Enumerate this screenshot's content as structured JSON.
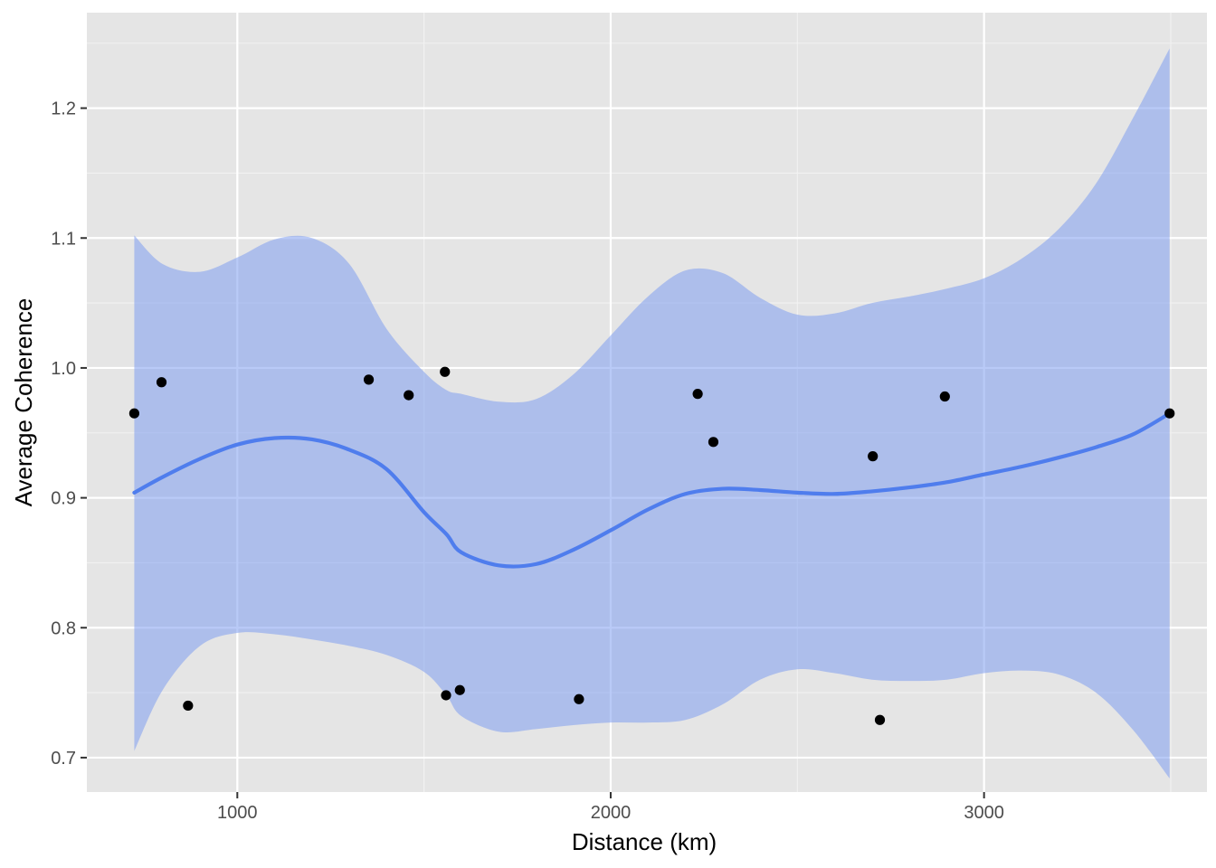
{
  "chart_data": {
    "type": "scatter",
    "title": "",
    "xlabel": "Distance (km)",
    "ylabel": "Average Coherence",
    "xlim": [
      597,
      3597
    ],
    "ylim": [
      0.6735,
      1.2735
    ],
    "x_ticks": [
      1000,
      2000,
      3000
    ],
    "x_tick_labels": [
      "1000",
      "2000",
      "3000"
    ],
    "x_minor_ticks": [
      1500,
      2500,
      3500
    ],
    "y_ticks": [
      0.7,
      0.8,
      0.9,
      1.0,
      1.1,
      1.2
    ],
    "y_tick_labels": [
      "0.7",
      "0.8",
      "0.9",
      "1.0",
      "1.1",
      "1.2"
    ],
    "y_minor_ticks": [
      0.75,
      0.85,
      0.95,
      1.05,
      1.15,
      1.25
    ],
    "grid": true,
    "legend": "none",
    "points": {
      "x": [
        724,
        797,
        868,
        1352,
        1459,
        1556,
        1559,
        1596,
        1915,
        2233,
        2275,
        2702,
        2721,
        2895,
        3497
      ],
      "y": [
        0.965,
        0.989,
        0.74,
        0.991,
        0.979,
        0.997,
        0.748,
        0.752,
        0.745,
        0.98,
        0.943,
        0.932,
        0.729,
        0.978,
        0.965
      ]
    },
    "smooth": {
      "x": [
        724,
        800,
        900,
        1000,
        1100,
        1200,
        1300,
        1400,
        1500,
        1560,
        1600,
        1700,
        1800,
        1900,
        2000,
        2100,
        2200,
        2300,
        2400,
        2500,
        2600,
        2700,
        2800,
        2900,
        3000,
        3100,
        3200,
        3300,
        3400,
        3497
      ],
      "y": [
        0.904,
        0.916,
        0.93,
        0.941,
        0.946,
        0.945,
        0.937,
        0.922,
        0.889,
        0.872,
        0.858,
        0.848,
        0.849,
        0.86,
        0.875,
        0.891,
        0.903,
        0.907,
        0.906,
        0.904,
        0.903,
        0.905,
        0.908,
        0.912,
        0.918,
        0.924,
        0.931,
        0.939,
        0.949,
        0.965
      ],
      "upper": [
        1.102,
        1.08,
        1.074,
        1.085,
        1.099,
        1.1,
        1.08,
        1.03,
        0.997,
        0.983,
        0.98,
        0.974,
        0.976,
        0.995,
        1.025,
        1.055,
        1.075,
        1.073,
        1.054,
        1.041,
        1.042,
        1.05,
        1.055,
        1.061,
        1.069,
        1.084,
        1.107,
        1.142,
        1.193,
        1.246
      ],
      "lower": [
        0.705,
        0.752,
        0.786,
        0.796,
        0.795,
        0.791,
        0.786,
        0.779,
        0.766,
        0.748,
        0.732,
        0.72,
        0.722,
        0.725,
        0.727,
        0.727,
        0.729,
        0.741,
        0.76,
        0.768,
        0.765,
        0.76,
        0.759,
        0.76,
        0.765,
        0.767,
        0.764,
        0.75,
        0.721,
        0.684
      ]
    },
    "colors": {
      "panel_background": "#e5e5e5",
      "grid_major": "#ffffff",
      "grid_minor": "#f2f2f2",
      "ribbon_fill": "#7f9ff0",
      "ribbon_opacity": 0.55,
      "smooth_line": "#4f7ded",
      "point_fill": "#000000",
      "tick_text": "#4d4d4d",
      "tick_mark": "#333333"
    }
  }
}
